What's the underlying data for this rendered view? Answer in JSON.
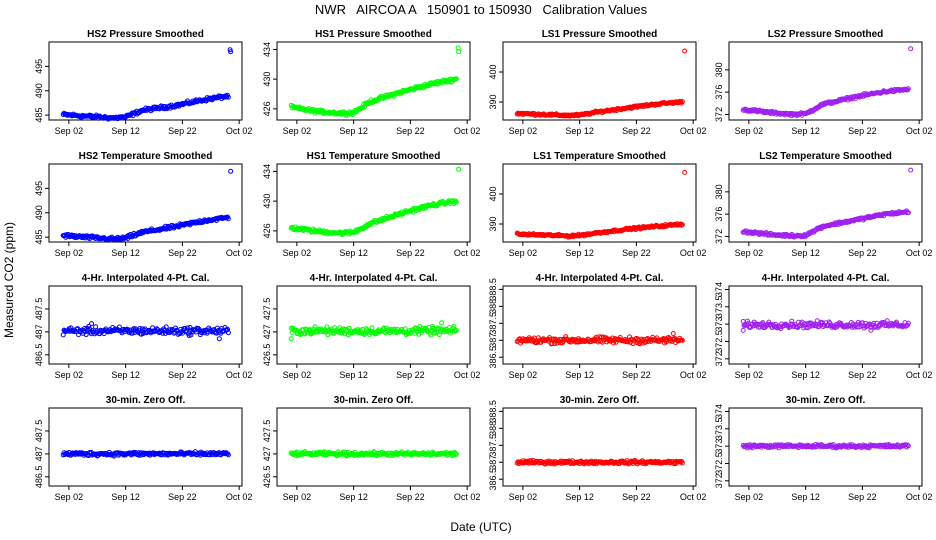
{
  "figure": {
    "title": "NWR   AIRCOA A   150901 to 150930   Calibration Values",
    "xlabel": "Date (UTC)",
    "ylabel": "Measured CO2 (ppm)"
  },
  "colors": {
    "HS2": "#0000ff",
    "HS1": "#00ff00",
    "LS1": "#ff0000",
    "LS2": "#a020f0"
  },
  "chart_data": [
    {
      "type": "scatter",
      "title": "HS2 Pressure Smoothed",
      "series": "HS2",
      "row": 0,
      "col": 0,
      "ylim": [
        484,
        500
      ],
      "yticks": [
        485,
        490,
        495
      ],
      "xlim": [
        -2.5,
        31.5
      ],
      "xticks": [
        1,
        11,
        21,
        31
      ],
      "xticklabels": [
        "Sep 02",
        "Sep 12",
        "Sep 22",
        "Oct 02"
      ],
      "shape": "trend",
      "trend": [
        [
          0,
          485.1
        ],
        [
          5,
          484.7
        ],
        [
          9,
          484.4
        ],
        [
          11,
          484.6
        ],
        [
          14,
          486.0
        ],
        [
          20,
          487.0
        ],
        [
          25,
          488.2
        ],
        [
          29,
          488.9
        ]
      ],
      "noise": 0.3,
      "outliers": [
        [
          29.4,
          498.4
        ],
        [
          29.5,
          498.0
        ]
      ]
    },
    {
      "type": "scatter",
      "title": "HS1 Pressure Smoothed",
      "series": "HS1",
      "row": 0,
      "col": 1,
      "ylim": [
        424.5,
        435
      ],
      "yticks": [
        426,
        430,
        434
      ],
      "xlim": [
        -2.5,
        31.5
      ],
      "xticks": [
        1,
        11,
        21,
        31
      ],
      "xticklabels": [
        "Sep 02",
        "Sep 12",
        "Sep 22",
        "Oct 02"
      ],
      "shape": "trend",
      "trend": [
        [
          0,
          426.2
        ],
        [
          5,
          425.6
        ],
        [
          9,
          425.4
        ],
        [
          11,
          425.5
        ],
        [
          14,
          427.0
        ],
        [
          20,
          428.4
        ],
        [
          25,
          429.4
        ],
        [
          29,
          430.0
        ]
      ],
      "noise": 0.2,
      "outliers": [
        [
          29.4,
          434.2
        ],
        [
          29.5,
          433.7
        ]
      ]
    },
    {
      "type": "scatter",
      "title": "LS1 Pressure Smoothed",
      "series": "LS1",
      "row": 0,
      "col": 2,
      "ylim": [
        384,
        410
      ],
      "yticks": [
        390,
        400
      ],
      "xlim": [
        -2.5,
        31.5
      ],
      "xticks": [
        1,
        11,
        21,
        31
      ],
      "xticklabels": [
        "Sep 02",
        "Sep 12",
        "Sep 22",
        "Oct 02"
      ],
      "shape": "trend",
      "trend": [
        [
          0,
          386.2
        ],
        [
          5,
          385.8
        ],
        [
          9,
          385.5
        ],
        [
          11,
          385.6
        ],
        [
          14,
          386.6
        ],
        [
          20,
          388.2
        ],
        [
          25,
          389.4
        ],
        [
          29,
          390.0
        ]
      ],
      "noise": 0.3,
      "outliers": [
        [
          29.5,
          407.0
        ]
      ]
    },
    {
      "type": "scatter",
      "title": "LS2 Pressure Smoothed",
      "series": "LS2",
      "row": 0,
      "col": 3,
      "ylim": [
        371,
        385
      ],
      "yticks": [
        372,
        376,
        380
      ],
      "xlim": [
        -2.5,
        31.5
      ],
      "xticks": [
        1,
        11,
        21,
        31
      ],
      "xticklabels": [
        "Sep 02",
        "Sep 12",
        "Sep 22",
        "Oct 02"
      ],
      "shape": "trend",
      "trend": [
        [
          0,
          372.9
        ],
        [
          5,
          372.3
        ],
        [
          9,
          372.0
        ],
        [
          11,
          372.1
        ],
        [
          14,
          373.8
        ],
        [
          20,
          375.2
        ],
        [
          25,
          376.1
        ],
        [
          29,
          376.5
        ]
      ],
      "noise": 0.2,
      "outliers": [
        [
          29.5,
          383.8
        ]
      ]
    },
    {
      "type": "scatter",
      "title": "HS2 Temperature Smoothed",
      "series": "HS2",
      "row": 1,
      "col": 0,
      "ylim": [
        484,
        500
      ],
      "yticks": [
        485,
        490,
        495
      ],
      "xlim": [
        -2.5,
        31.5
      ],
      "xticks": [
        1,
        11,
        21,
        31
      ],
      "xticklabels": [
        "Sep 02",
        "Sep 12",
        "Sep 22",
        "Oct 02"
      ],
      "shape": "trend",
      "trend": [
        [
          0,
          485.3
        ],
        [
          5,
          484.9
        ],
        [
          9,
          484.6
        ],
        [
          11,
          484.8
        ],
        [
          14,
          486.0
        ],
        [
          20,
          487.2
        ],
        [
          25,
          488.4
        ],
        [
          29,
          489.0
        ]
      ],
      "noise": 0.3,
      "outliers": [
        [
          29.5,
          498.5
        ]
      ]
    },
    {
      "type": "scatter",
      "title": "HS1 Temperature Smoothed",
      "series": "HS1",
      "row": 1,
      "col": 1,
      "ylim": [
        424.5,
        435
      ],
      "yticks": [
        426,
        430,
        434
      ],
      "xlim": [
        -2.5,
        31.5
      ],
      "xticks": [
        1,
        11,
        21,
        31
      ],
      "xticklabels": [
        "Sep 02",
        "Sep 12",
        "Sep 22",
        "Oct 02"
      ],
      "shape": "trend",
      "trend": [
        [
          0,
          426.4
        ],
        [
          5,
          425.9
        ],
        [
          9,
          425.7
        ],
        [
          11,
          425.8
        ],
        [
          14,
          427.0
        ],
        [
          20,
          428.5
        ],
        [
          25,
          429.5
        ],
        [
          29,
          430.0
        ]
      ],
      "noise": 0.2,
      "outliers": [
        [
          29.5,
          434.3
        ]
      ]
    },
    {
      "type": "scatter",
      "title": "LS1 Temperature Smoothed",
      "series": "LS1",
      "row": 1,
      "col": 2,
      "ylim": [
        384,
        410
      ],
      "yticks": [
        390,
        400
      ],
      "xlim": [
        -2.5,
        31.5
      ],
      "xticks": [
        1,
        11,
        21,
        31
      ],
      "xticklabels": [
        "Sep 02",
        "Sep 12",
        "Sep 22",
        "Oct 02"
      ],
      "shape": "trend",
      "trend": [
        [
          0,
          386.6
        ],
        [
          5,
          386.3
        ],
        [
          9,
          386.0
        ],
        [
          11,
          386.2
        ],
        [
          14,
          387.0
        ],
        [
          20,
          388.4
        ],
        [
          25,
          389.3
        ],
        [
          29,
          389.9
        ]
      ],
      "noise": 0.3,
      "outliers": [
        [
          29.5,
          407.2
        ]
      ]
    },
    {
      "type": "scatter",
      "title": "LS2 Temperature Smoothed",
      "series": "LS2",
      "row": 1,
      "col": 3,
      "ylim": [
        371,
        385
      ],
      "yticks": [
        372,
        376,
        380
      ],
      "xlim": [
        -2.5,
        31.5
      ],
      "xticks": [
        1,
        11,
        21,
        31
      ],
      "xticklabels": [
        "Sep 02",
        "Sep 12",
        "Sep 22",
        "Oct 02"
      ],
      "shape": "trend",
      "trend": [
        [
          0,
          372.9
        ],
        [
          5,
          372.3
        ],
        [
          9,
          372.1
        ],
        [
          11,
          372.2
        ],
        [
          14,
          373.8
        ],
        [
          20,
          375.0
        ],
        [
          25,
          376.0
        ],
        [
          29,
          376.4
        ]
      ],
      "noise": 0.2,
      "outliers": [
        [
          29.5,
          383.9
        ]
      ]
    },
    {
      "type": "scatter",
      "title": "4-Hr. Interpolated 4-Pt. Cal.",
      "series": "HS2",
      "row": 2,
      "col": 0,
      "ylim": [
        486.3,
        488.0
      ],
      "yticks": [
        486.5,
        487.0,
        487.5
      ],
      "xlim": [
        -2.5,
        31.5
      ],
      "xticks": [
        1,
        11,
        21,
        31
      ],
      "xticklabels": [
        "Sep 02",
        "Sep 12",
        "Sep 22",
        "Oct 02"
      ],
      "shape": "flat",
      "center": 487.02,
      "noise": 0.07,
      "outliers": [
        [
          27.5,
          486.85
        ],
        [
          5.0,
          487.18
        ]
      ]
    },
    {
      "type": "scatter",
      "title": "4-Hr. Interpolated 4-Pt. Cal.",
      "series": "HS1",
      "row": 2,
      "col": 1,
      "ylim": [
        426.3,
        428.0
      ],
      "yticks": [
        426.5,
        427.0,
        427.5
      ],
      "xlim": [
        -2.5,
        31.5
      ],
      "xticks": [
        1,
        11,
        21,
        31
      ],
      "xticklabels": [
        "Sep 02",
        "Sep 12",
        "Sep 22",
        "Oct 02"
      ],
      "shape": "flat",
      "center": 427.02,
      "noise": 0.07,
      "outliers": [
        [
          0.0,
          426.85
        ],
        [
          26.5,
          427.2
        ]
      ]
    },
    {
      "type": "scatter",
      "title": "4-Hr. Interpolated 4-Pt. Cal.",
      "series": "LS1",
      "row": 2,
      "col": 2,
      "ylim": [
        386.3,
        388.6
      ],
      "yticks": [
        386.5,
        387.0,
        387.5,
        388.0,
        388.5
      ],
      "xlim": [
        -2.5,
        31.5
      ],
      "xticks": [
        1,
        11,
        21,
        31
      ],
      "xticklabels": [
        "Sep 02",
        "Sep 12",
        "Sep 22",
        "Oct 02"
      ],
      "shape": "flat",
      "center": 387.0,
      "noise": 0.08,
      "outliers": [
        [
          27.5,
          387.2
        ]
      ]
    },
    {
      "type": "scatter",
      "title": "4-Hr. Interpolated 4-Pt. Cal.",
      "series": "LS2",
      "row": 2,
      "col": 3,
      "ylim": [
        371.85,
        374.1
      ],
      "yticks": [
        372.0,
        372.5,
        373.0,
        373.5,
        374.0
      ],
      "xlim": [
        -2.5,
        31.5
      ],
      "xticks": [
        1,
        11,
        21,
        31
      ],
      "xticklabels": [
        "Sep 02",
        "Sep 12",
        "Sep 22",
        "Oct 02"
      ],
      "shape": "flat",
      "center": 372.98,
      "noise": 0.08,
      "outliers": [
        [
          0.0,
          372.82
        ],
        [
          22.5,
          372.82
        ]
      ]
    },
    {
      "type": "scatter",
      "title": "30-min. Zero Off.",
      "series": "HS2",
      "row": 3,
      "col": 0,
      "ylim": [
        486.3,
        488.0
      ],
      "yticks": [
        486.5,
        487.0,
        487.5
      ],
      "xlim": [
        -2.5,
        31.5
      ],
      "xticks": [
        1,
        11,
        21,
        31
      ],
      "xticklabels": [
        "Sep 02",
        "Sep 12",
        "Sep 22",
        "Oct 02"
      ],
      "shape": "flat",
      "center": 487.0,
      "noise": 0.035,
      "outliers": []
    },
    {
      "type": "scatter",
      "title": "30-min. Zero Off.",
      "series": "HS1",
      "row": 3,
      "col": 1,
      "ylim": [
        426.3,
        428.0
      ],
      "yticks": [
        426.5,
        427.0,
        427.5
      ],
      "xlim": [
        -2.5,
        31.5
      ],
      "xticks": [
        1,
        11,
        21,
        31
      ],
      "xticklabels": [
        "Sep 02",
        "Sep 12",
        "Sep 22",
        "Oct 02"
      ],
      "shape": "flat",
      "center": 427.0,
      "noise": 0.035,
      "outliers": []
    },
    {
      "type": "scatter",
      "title": "30-min. Zero Off.",
      "series": "LS1",
      "row": 3,
      "col": 2,
      "ylim": [
        386.3,
        388.6
      ],
      "yticks": [
        386.5,
        387.0,
        387.5,
        388.0,
        388.5
      ],
      "xlim": [
        -2.5,
        31.5
      ],
      "xticks": [
        1,
        11,
        21,
        31
      ],
      "xticklabels": [
        "Sep 02",
        "Sep 12",
        "Sep 22",
        "Oct 02"
      ],
      "shape": "flat",
      "center": 387.0,
      "noise": 0.04,
      "outliers": []
    },
    {
      "type": "scatter",
      "title": "30-min. Zero Off.",
      "series": "LS2",
      "row": 3,
      "col": 3,
      "ylim": [
        371.85,
        374.1
      ],
      "yticks": [
        372.0,
        372.5,
        373.0,
        373.5,
        374.0
      ],
      "xlim": [
        -2.5,
        31.5
      ],
      "xticks": [
        1,
        11,
        21,
        31
      ],
      "xticklabels": [
        "Sep 02",
        "Sep 12",
        "Sep 22",
        "Oct 02"
      ],
      "shape": "flat",
      "center": 373.0,
      "noise": 0.04,
      "outliers": []
    }
  ]
}
